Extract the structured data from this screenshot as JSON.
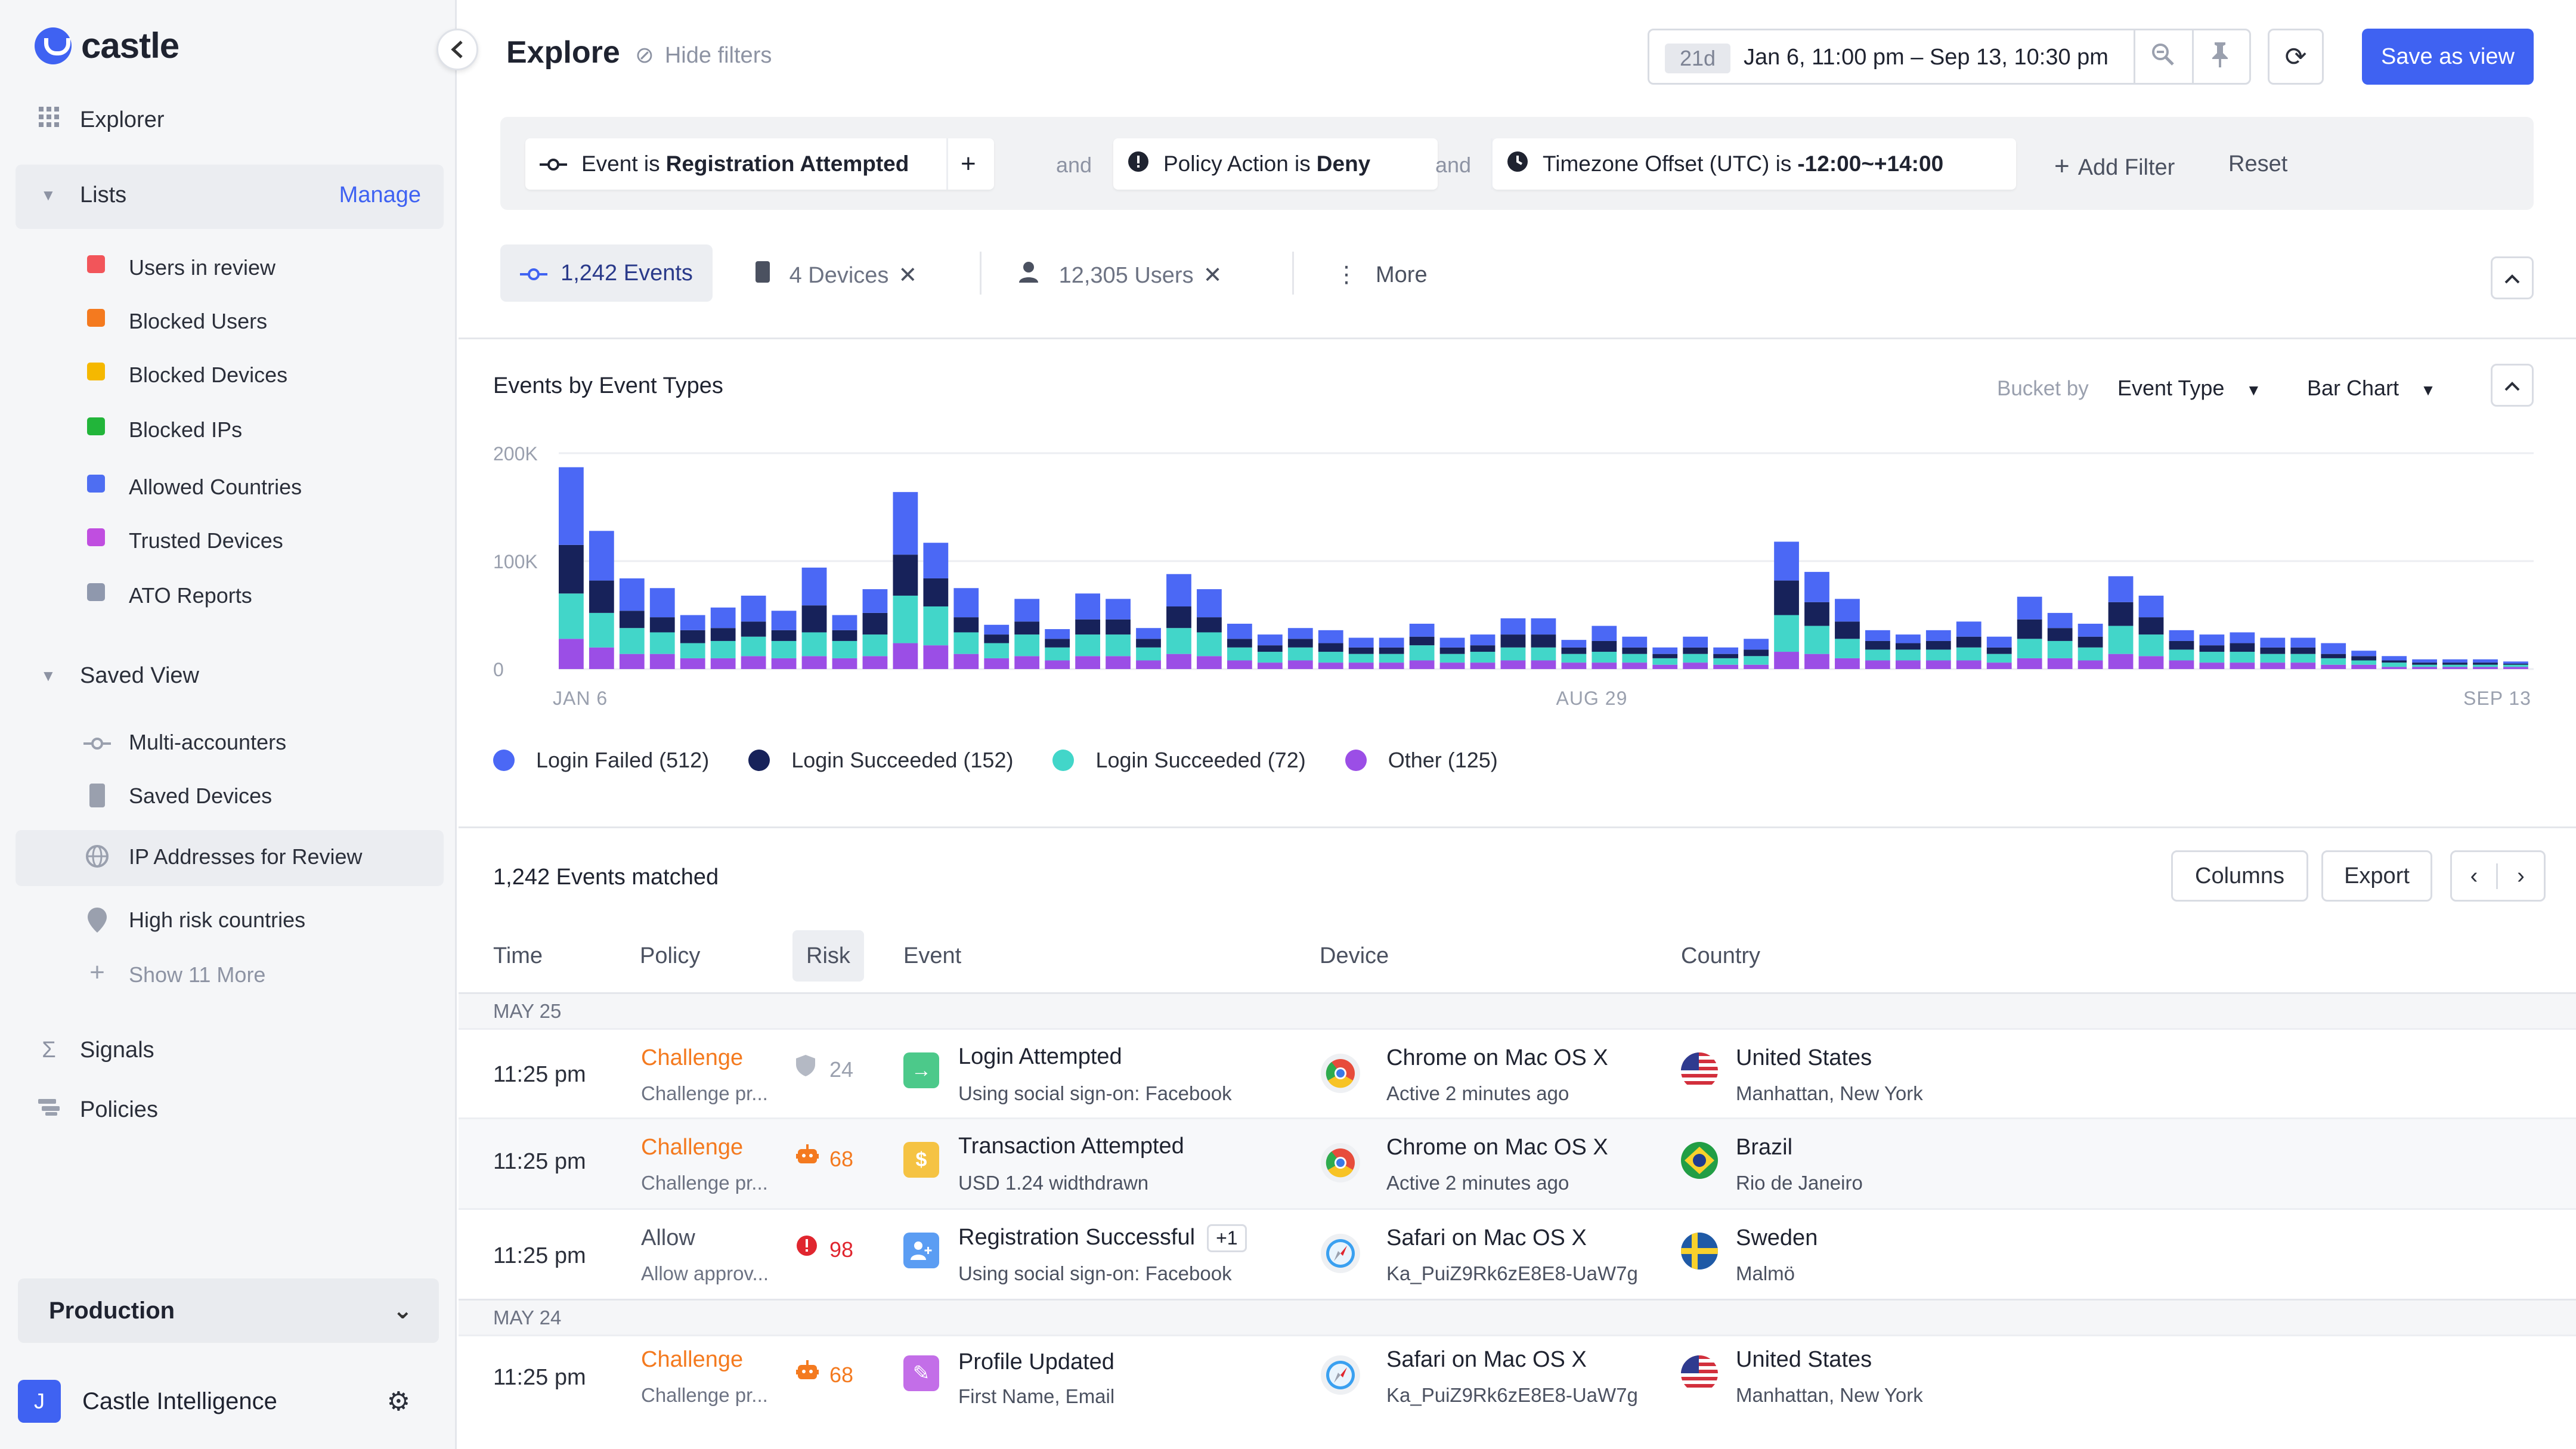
{
  "app": {
    "logo_text": "castle"
  },
  "sidebar": {
    "explorer": "Explorer",
    "lists_header": "Lists",
    "manage": "Manage",
    "lists": [
      {
        "label": "Users in review",
        "color": "#f2555a"
      },
      {
        "label": "Blocked Users",
        "color": "#f47a1f"
      },
      {
        "label": "Blocked Devices",
        "color": "#f5b800"
      },
      {
        "label": "Blocked IPs",
        "color": "#22b53a"
      },
      {
        "label": "Allowed Countries",
        "color": "#4e6ef2"
      },
      {
        "label": "Trusted Devices",
        "color": "#c04ee0"
      },
      {
        "label": "ATO Reports",
        "color": "#8f98ad"
      }
    ],
    "saved_view_header": "Saved View",
    "saved_views": [
      {
        "label": "Multi-accounters",
        "icon": "event-icon"
      },
      {
        "label": "Saved Devices",
        "icon": "device-icon"
      },
      {
        "label": "IP Addresses for Review",
        "icon": "globe-icon"
      },
      {
        "label": "High risk countries",
        "icon": "location-pin-icon"
      }
    ],
    "show_more": "Show 11 More",
    "signals": "Signals",
    "policies": "Policies",
    "environment": "Production",
    "user_initial": "J",
    "user_org": "Castle Intelligence"
  },
  "header": {
    "title": "Explore",
    "hide_filters": "Hide filters",
    "date_badge": "21d",
    "date_range": "Jan 6, 11:00 pm – Sep 13, 10:30 pm",
    "save_view": "Save as view"
  },
  "filters": {
    "chip1_prefix": "Event is",
    "chip1_value": "Registration Attempted",
    "and1": "and",
    "chip2_prefix": "Policy Action is",
    "chip2_value": "Deny",
    "and2": "and",
    "chip3_prefix": "Timezone Offset (UTC) is",
    "chip3_value": "-12:00~+14:00",
    "add_filter": "Add Filter",
    "reset": "Reset"
  },
  "tabs": {
    "events": "1,242 Events",
    "devices": "4 Devices",
    "users": "12,305 Users",
    "more": "More"
  },
  "chart_panel": {
    "title": "Events by Event Types",
    "bucket_label": "Bucket by",
    "bucket_value": "Event Type",
    "chart_type": "Bar Chart"
  },
  "chart_data": {
    "type": "bar",
    "stacked": true,
    "y_ticks": [
      "200K",
      "100K",
      "0"
    ],
    "ylim": [
      0,
      200000
    ],
    "x_tick_labels": [
      "JAN 6",
      "AUG 29",
      "SEP 13"
    ],
    "grid": true,
    "legend_position": "bottom-left",
    "colors": [
      "#4b68f5",
      "#17225a",
      "#42d6c9",
      "#9b4ee6"
    ],
    "series": [
      {
        "name": "Login Failed (512)",
        "values": [
          72000,
          46000,
          30000,
          27000,
          14000,
          19000,
          24000,
          18000,
          35000,
          14000,
          22000,
          58000,
          33000,
          27000,
          9000,
          21000,
          9000,
          24000,
          19000,
          10000,
          30000,
          26000,
          14000,
          10000,
          10000,
          12000,
          9000,
          9000,
          12000,
          9000,
          10000,
          15000,
          15000,
          7000,
          14000,
          10000,
          6000,
          10000,
          6000,
          10000,
          36000,
          28000,
          21000,
          10000,
          8000,
          10000,
          14000,
          10000,
          21000,
          14000,
          12000,
          24000,
          20000,
          10000,
          10000,
          10000,
          9000,
          9000,
          10000,
          5000,
          4000,
          3000,
          3000,
          3000,
          2000
        ]
      },
      {
        "name": "Login Succeeded (152)",
        "values": [
          45000,
          30000,
          16000,
          14000,
          12000,
          12000,
          14000,
          10000,
          25000,
          10000,
          20000,
          38000,
          26000,
          14000,
          8000,
          12000,
          8000,
          14000,
          14000,
          8000,
          20000,
          14000,
          8000,
          6000,
          8000,
          8000,
          6000,
          6000,
          8000,
          6000,
          6000,
          12000,
          12000,
          6000,
          10000,
          6000,
          4000,
          6000,
          4000,
          6000,
          32000,
          22000,
          16000,
          8000,
          6000,
          8000,
          10000,
          6000,
          18000,
          12000,
          10000,
          22000,
          16000,
          8000,
          6000,
          8000,
          6000,
          6000,
          4000,
          4000,
          2000,
          2000,
          2000,
          2000,
          1000
        ]
      },
      {
        "name": "Login Succeeded (72)",
        "values": [
          42000,
          32000,
          24000,
          20000,
          14000,
          16000,
          18000,
          16000,
          22000,
          16000,
          20000,
          44000,
          36000,
          20000,
          14000,
          20000,
          12000,
          20000,
          20000,
          12000,
          24000,
          22000,
          12000,
          10000,
          12000,
          10000,
          8000,
          8000,
          14000,
          8000,
          10000,
          12000,
          12000,
          8000,
          10000,
          8000,
          6000,
          8000,
          6000,
          8000,
          34000,
          26000,
          18000,
          10000,
          10000,
          10000,
          12000,
          8000,
          18000,
          16000,
          12000,
          26000,
          20000,
          10000,
          10000,
          10000,
          8000,
          8000,
          6000,
          4000,
          4000,
          2000,
          2000,
          2000,
          2000
        ]
      },
      {
        "name": "Other (125)",
        "values": [
          28000,
          20000,
          14000,
          14000,
          10000,
          10000,
          12000,
          10000,
          12000,
          10000,
          12000,
          24000,
          22000,
          14000,
          10000,
          12000,
          8000,
          12000,
          12000,
          8000,
          14000,
          12000,
          8000,
          6000,
          8000,
          6000,
          6000,
          6000,
          8000,
          6000,
          6000,
          8000,
          8000,
          6000,
          6000,
          6000,
          4000,
          6000,
          4000,
          4000,
          16000,
          14000,
          10000,
          8000,
          8000,
          8000,
          8000,
          6000,
          10000,
          10000,
          8000,
          14000,
          12000,
          8000,
          6000,
          6000,
          6000,
          6000,
          4000,
          4000,
          2000,
          2000,
          2000,
          2000,
          2000
        ]
      }
    ]
  },
  "table": {
    "matched": "1,242 Events matched",
    "columns_btn": "Columns",
    "export_btn": "Export",
    "headers": {
      "time": "Time",
      "policy": "Policy",
      "risk": "Risk",
      "event": "Event",
      "device": "Device",
      "country": "Country"
    },
    "group1": "MAY 25",
    "group2": "MAY 24",
    "rows": [
      {
        "time": "11:25 pm",
        "policy": "Challenge",
        "policy_sub": "Challenge pr...",
        "risk": "24",
        "event": "Login Attempted",
        "event_sub": "Using social sign-on: Facebook",
        "event_badge": "",
        "device": "Chrome on Mac OS X",
        "device_sub": "Active 2 minutes ago",
        "country": "United States",
        "country_sub": "Manhattan, New York"
      },
      {
        "time": "11:25 pm",
        "policy": "Challenge",
        "policy_sub": "Challenge pr...",
        "risk": "68",
        "event": "Transaction Attempted",
        "event_sub": "USD 1.24 widthdrawn",
        "event_badge": "",
        "device": "Chrome on Mac OS X",
        "device_sub": "Active 2 minutes ago",
        "country": "Brazil",
        "country_sub": "Rio de Janeiro"
      },
      {
        "time": "11:25 pm",
        "policy": "Allow",
        "policy_sub": "Allow approv...",
        "risk": "98",
        "event": "Registration Successful",
        "event_sub": "Using social sign-on: Facebook",
        "event_badge": "+1",
        "device": "Safari on Mac OS X",
        "device_sub": "Ka_PuiZ9Rk6zE8E8-UaW7g",
        "country": "Sweden",
        "country_sub": "Malmö"
      },
      {
        "time": "11:25 pm",
        "policy": "Challenge",
        "policy_sub": "Challenge pr...",
        "risk": "68",
        "event": "Profile Updated",
        "event_sub": "First Name, Email",
        "event_badge": "",
        "device": "Safari on Mac OS X",
        "device_sub": "Ka_PuiZ9Rk6zE8E8-UaW7g",
        "country": "United States",
        "country_sub": "Manhattan, New York"
      }
    ]
  }
}
